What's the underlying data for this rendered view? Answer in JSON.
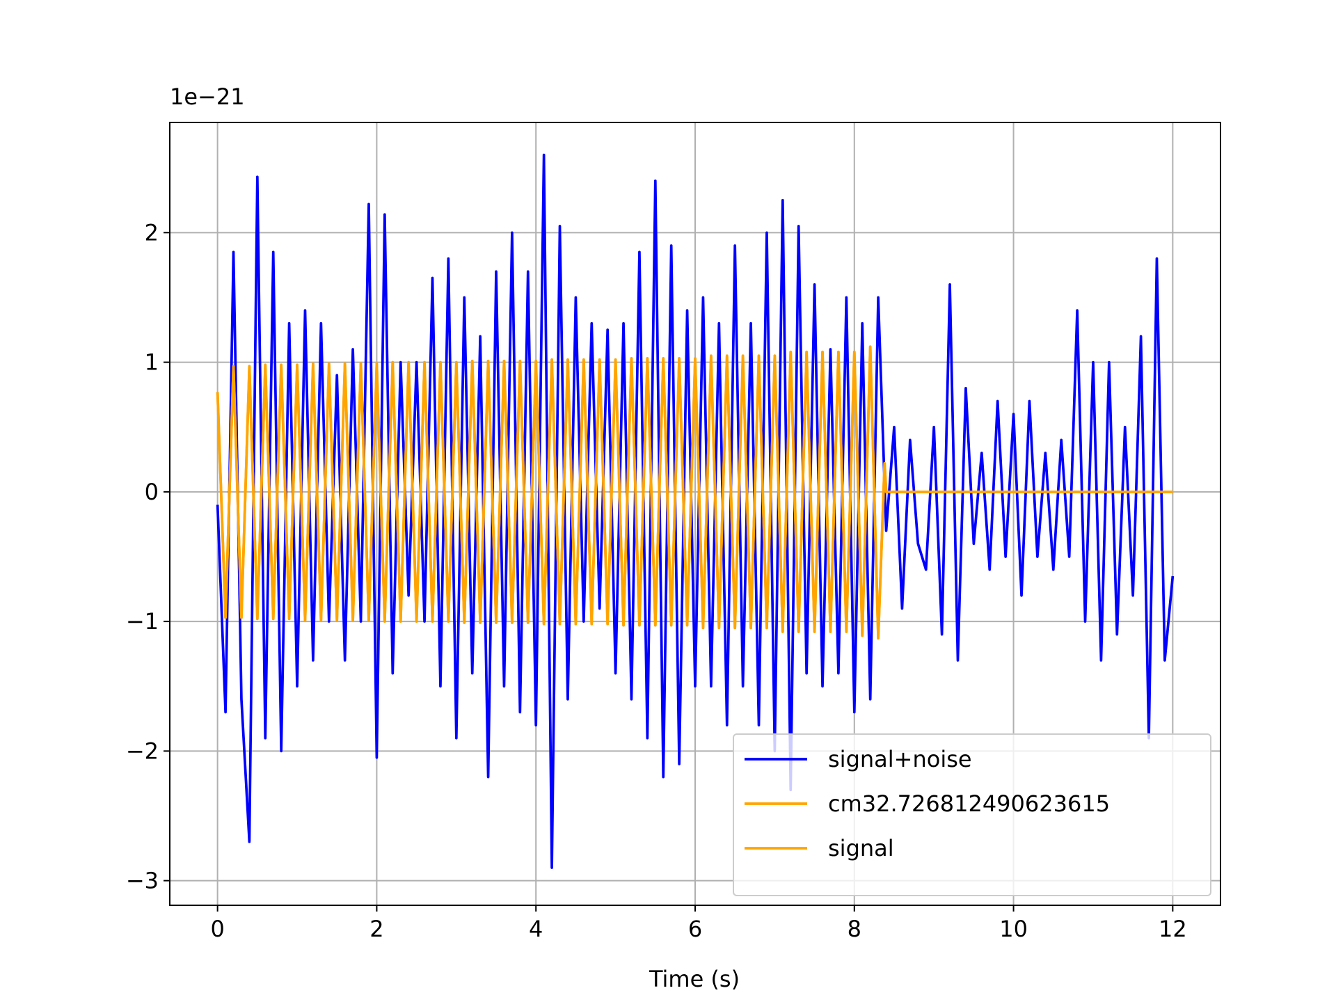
{
  "chart_data": {
    "type": "line",
    "offset_label": "1e−21",
    "xlabel": "Time (s)",
    "xlim": [
      -0.6,
      12.6
    ],
    "xticks": [
      0,
      2,
      4,
      6,
      8,
      10,
      12
    ],
    "ylim": [
      -3.19,
      2.85
    ],
    "yticks": [
      {
        "value": -3,
        "label": "−3"
      },
      {
        "value": -2,
        "label": "−2"
      },
      {
        "value": -1,
        "label": "−1"
      },
      0,
      1,
      2
    ],
    "grid": true,
    "legend": "lower right",
    "series": [
      {
        "name": "signal+noise",
        "color": "#0000ff",
        "x": [
          0,
          0.1,
          0.2,
          0.3,
          0.4,
          0.5,
          0.6,
          0.7,
          0.8,
          0.9,
          1,
          1.1,
          1.2,
          1.3,
          1.4,
          1.5,
          1.6,
          1.7,
          1.8,
          1.9,
          2,
          2.1,
          2.2,
          2.3,
          2.4,
          2.5,
          2.6,
          2.7,
          2.8,
          2.9,
          3,
          3.1,
          3.2,
          3.3,
          3.4,
          3.5,
          3.6,
          3.7,
          3.8,
          3.9,
          4,
          4.1,
          4.2,
          4.3,
          4.4,
          4.5,
          4.6,
          4.7,
          4.8,
          4.9,
          5,
          5.1,
          5.2,
          5.3,
          5.4,
          5.5,
          5.6,
          5.7,
          5.8,
          5.9,
          6,
          6.1,
          6.2,
          6.3,
          6.4,
          6.5,
          6.6,
          6.7,
          6.8,
          6.9,
          7,
          7.1,
          7.2,
          7.3,
          7.4,
          7.5,
          7.6,
          7.7,
          7.8,
          7.9,
          8,
          8.1,
          8.2,
          8.3,
          8.4,
          8.5,
          8.6,
          8.7,
          8.8,
          8.9,
          9,
          9.1,
          9.2,
          9.3,
          9.4,
          9.5,
          9.6,
          9.7,
          9.8,
          9.9,
          10,
          10.1,
          10.2,
          10.3,
          10.4,
          10.5,
          10.6,
          10.7,
          10.8,
          10.9,
          11,
          11.1,
          11.2,
          11.3,
          11.4,
          11.5,
          11.6,
          11.7,
          11.8,
          11.9,
          12
        ],
        "values": [
          -0.1,
          -1.7,
          1.85,
          -1.6,
          -2.7,
          2.43,
          -1.9,
          1.85,
          -2.0,
          1.3,
          -1.5,
          1.4,
          -1.3,
          1.3,
          -1.0,
          0.9,
          -1.3,
          1.1,
          -1.0,
          2.22,
          -2.05,
          2.14,
          -1.4,
          1.0,
          -0.8,
          1.0,
          -1.0,
          1.65,
          -1.5,
          1.8,
          -1.9,
          1.5,
          -1.4,
          1.2,
          -2.2,
          1.7,
          -1.5,
          2.0,
          -1.7,
          1.7,
          -1.8,
          2.6,
          -2.9,
          2.05,
          -1.6,
          1.5,
          -1.0,
          1.3,
          -0.9,
          1.25,
          -1.4,
          1.3,
          -1.6,
          1.85,
          -1.9,
          2.4,
          -2.2,
          1.9,
          -2.1,
          1.4,
          -1.5,
          1.5,
          -1.5,
          1.3,
          -1.8,
          1.9,
          -1.5,
          1.3,
          -1.8,
          2.0,
          -2.0,
          2.25,
          -2.3,
          2.05,
          -1.4,
          1.6,
          -1.5,
          1.1,
          -1.4,
          1.5,
          -1.7,
          1.3,
          -1.6,
          1.5,
          -0.3,
          0.5,
          -0.9,
          0.4,
          -0.4,
          -0.6,
          0.5,
          -1.1,
          1.6,
          -1.3,
          0.8,
          -0.4,
          0.3,
          -0.6,
          0.7,
          -0.5,
          0.6,
          -0.8,
          0.7,
          -0.5,
          0.3,
          -0.6,
          0.4,
          -0.5,
          1.4,
          -1.0,
          1.0,
          -1.3,
          1.0,
          -1.1,
          0.5,
          -0.8,
          1.2,
          -1.9,
          1.8,
          -1.3,
          -0.65
        ]
      },
      {
        "name": "cm32.726812490623615",
        "color": "#ffa500",
        "x": [
          0,
          0.1,
          0.2,
          0.3,
          0.4,
          0.5,
          0.6,
          0.7,
          0.8,
          0.9,
          1,
          1.1,
          1.2,
          1.3,
          1.4,
          1.5,
          1.6,
          1.7,
          1.8,
          1.9,
          2,
          2.1,
          2.2,
          2.3,
          2.4,
          2.5,
          2.6,
          2.7,
          2.8,
          2.9,
          3,
          3.1,
          3.2,
          3.3,
          3.4,
          3.5,
          3.6,
          3.7,
          3.8,
          3.9,
          4,
          4.1,
          4.2,
          4.3,
          4.4,
          4.5,
          4.6,
          4.7,
          4.8,
          4.9,
          5,
          5.1,
          5.2,
          5.3,
          5.4,
          5.5,
          5.6,
          5.7,
          5.8,
          5.9,
          6,
          6.1,
          6.2,
          6.3,
          6.4,
          6.5,
          6.6,
          6.7,
          6.8,
          6.9,
          7,
          7.1,
          7.2,
          7.3,
          7.4,
          7.5,
          7.6,
          7.7,
          7.8,
          7.9,
          8,
          8.1,
          8.2,
          8.3,
          8.38,
          8.4,
          12
        ],
        "values": [
          0.77,
          -0.97,
          0.97,
          -0.97,
          0.97,
          -0.98,
          0.98,
          -0.98,
          0.98,
          -0.98,
          0.98,
          -0.99,
          0.99,
          -0.99,
          0.99,
          -0.99,
          0.99,
          -0.99,
          0.99,
          -0.99,
          0.99,
          -1.0,
          1.0,
          -1.0,
          1.0,
          -1.0,
          1.0,
          -1.0,
          1.0,
          -1.0,
          1.0,
          -1.01,
          1.01,
          -1.01,
          1.01,
          -1.01,
          1.01,
          -1.01,
          1.01,
          -1.01,
          1.01,
          -1.02,
          1.02,
          -1.02,
          1.02,
          -1.02,
          1.02,
          -1.02,
          1.02,
          -1.02,
          1.02,
          -1.03,
          1.03,
          -1.03,
          1.03,
          -1.03,
          1.03,
          -1.03,
          1.03,
          -1.03,
          1.03,
          -1.05,
          1.05,
          -1.05,
          1.05,
          -1.05,
          1.05,
          -1.05,
          1.05,
          -1.05,
          1.05,
          -1.08,
          1.08,
          -1.08,
          1.08,
          -1.08,
          1.08,
          -1.08,
          1.08,
          -1.08,
          1.08,
          -1.11,
          1.12,
          -1.13,
          0.22,
          0,
          0
        ]
      },
      {
        "name": "signal",
        "color": "#ffa500",
        "x": [
          0,
          0.1,
          0.2,
          0.3,
          0.4,
          0.5,
          0.6,
          0.7,
          0.8,
          0.9,
          1,
          1.1,
          1.2,
          1.3,
          1.4,
          1.5,
          1.6,
          1.7,
          1.8,
          1.9,
          2,
          2.1,
          2.2,
          2.3,
          2.4,
          2.5,
          2.6,
          2.7,
          2.8,
          2.9,
          3,
          3.1,
          3.2,
          3.3,
          3.4,
          3.5,
          3.6,
          3.7,
          3.8,
          3.9,
          4,
          4.1,
          4.2,
          4.3,
          4.4,
          4.5,
          4.6,
          4.7,
          4.8,
          4.9,
          5,
          5.1,
          5.2,
          5.3,
          5.4,
          5.5,
          5.6,
          5.7,
          5.8,
          5.9,
          6,
          6.1,
          6.2,
          6.3,
          6.4,
          6.5,
          6.6,
          6.7,
          6.8,
          6.9,
          7,
          7.1,
          7.2,
          7.3,
          7.4,
          7.5,
          7.6,
          7.7,
          7.8,
          7.9,
          8,
          8.1,
          8.2,
          8.3,
          8.38,
          8.4,
          12
        ],
        "values": [
          0.77,
          -0.97,
          0.97,
          -0.97,
          0.97,
          -0.98,
          0.98,
          -0.98,
          0.98,
          -0.98,
          0.98,
          -0.99,
          0.99,
          -0.99,
          0.99,
          -0.99,
          0.99,
          -0.99,
          0.99,
          -0.99,
          0.99,
          -1.0,
          1.0,
          -1.0,
          1.0,
          -1.0,
          1.0,
          -1.0,
          1.0,
          -1.0,
          1.0,
          -1.01,
          1.01,
          -1.01,
          1.01,
          -1.01,
          1.01,
          -1.01,
          1.01,
          -1.01,
          1.01,
          -1.02,
          1.02,
          -1.02,
          1.02,
          -1.02,
          1.02,
          -1.02,
          1.02,
          -1.02,
          1.02,
          -1.03,
          1.03,
          -1.03,
          1.03,
          -1.03,
          1.03,
          -1.03,
          1.03,
          -1.03,
          1.03,
          -1.05,
          1.05,
          -1.05,
          1.05,
          -1.05,
          1.05,
          -1.05,
          1.05,
          -1.05,
          1.05,
          -1.08,
          1.08,
          -1.08,
          1.08,
          -1.08,
          1.08,
          -1.08,
          1.08,
          -1.08,
          1.08,
          -1.11,
          1.12,
          -1.13,
          0.22,
          0,
          0
        ]
      }
    ]
  }
}
